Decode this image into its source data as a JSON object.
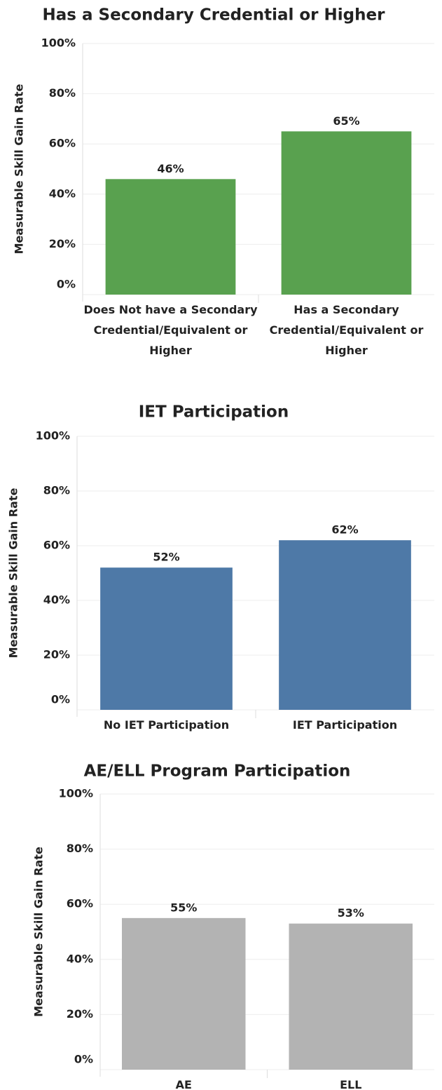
{
  "chart_data": [
    {
      "type": "bar",
      "title": "Has a Secondary Credential or Higher",
      "y_label": "Measurable Skill Gain Rate",
      "categories": [
        "Does Not have a Secondary Credential/Equivalent or Higher",
        "Has a Secondary Credential/Equivalent or Higher"
      ],
      "values": [
        46,
        65
      ],
      "value_labels": [
        "46%",
        "65%"
      ],
      "color": "#59a14f",
      "ylim": [
        0,
        100
      ],
      "yticks": [
        {
          "value": 0,
          "label": "0%"
        },
        {
          "value": 20,
          "label": "20%"
        },
        {
          "value": 40,
          "label": "40%"
        },
        {
          "value": 60,
          "label": "60%"
        },
        {
          "value": 80,
          "label": "80%"
        },
        {
          "value": 100,
          "label": "100%"
        }
      ],
      "grid": true
    },
    {
      "type": "bar",
      "title": "IET Participation",
      "y_label": "Measurable Skill Gain Rate",
      "categories": [
        "No IET Participation",
        "IET Participation"
      ],
      "values": [
        52,
        62
      ],
      "value_labels": [
        "52%",
        "62%"
      ],
      "color": "#4e79a7",
      "ylim": [
        0,
        100
      ],
      "yticks": [
        {
          "value": 0,
          "label": "0%"
        },
        {
          "value": 20,
          "label": "20%"
        },
        {
          "value": 40,
          "label": "40%"
        },
        {
          "value": 60,
          "label": "60%"
        },
        {
          "value": 80,
          "label": "80%"
        },
        {
          "value": 100,
          "label": "100%"
        }
      ],
      "grid": true
    },
    {
      "type": "bar",
      "title": "AE/ELL Program Participation",
      "y_label": "Measurable Skill Gain Rate",
      "categories": [
        "AE",
        "ELL"
      ],
      "values": [
        55,
        53
      ],
      "value_labels": [
        "55%",
        "53%"
      ],
      "color": "#b3b3b3",
      "ylim": [
        0,
        100
      ],
      "yticks": [
        {
          "value": 0,
          "label": "0%"
        },
        {
          "value": 20,
          "label": "20%"
        },
        {
          "value": 40,
          "label": "40%"
        },
        {
          "value": 60,
          "label": "60%"
        },
        {
          "value": 80,
          "label": "80%"
        },
        {
          "value": 100,
          "label": "100%"
        }
      ],
      "grid": true
    }
  ]
}
